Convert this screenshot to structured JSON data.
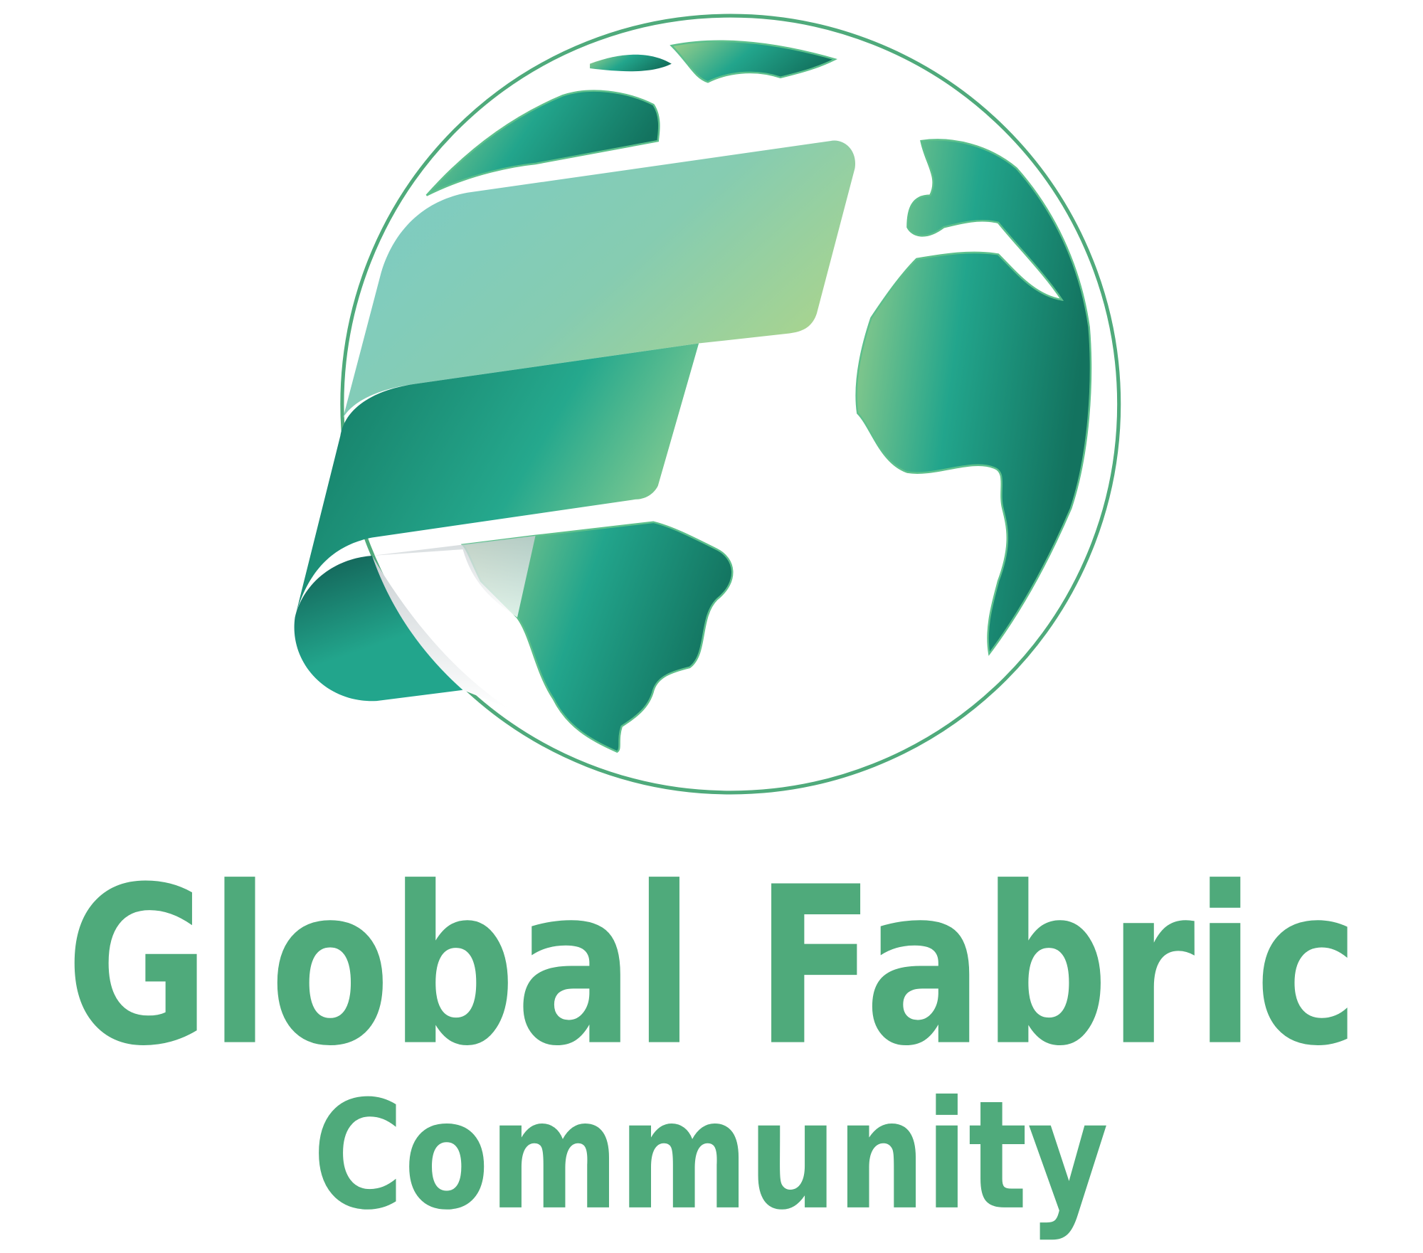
{
  "logo": {
    "title": "Global Fabric",
    "subtitle": "Community"
  }
}
